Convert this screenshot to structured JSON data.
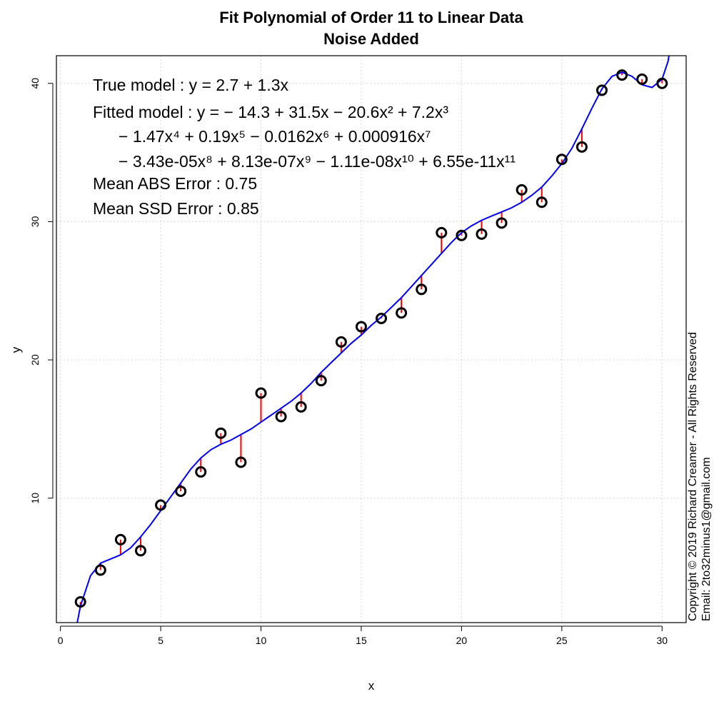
{
  "chart_data": {
    "type": "scatter",
    "title": "Fit Polynomial of Order 11 to Linear Data",
    "subtitle": "Noise Added",
    "xlabel": "x",
    "ylabel": "y",
    "xlim": [
      -0.2,
      31.2
    ],
    "ylim": [
      1.0,
      42.0
    ],
    "xticks": [
      0,
      5,
      10,
      15,
      20,
      25,
      30
    ],
    "yticks": [
      10,
      20,
      30,
      40
    ],
    "grid": true,
    "points": {
      "x": [
        1,
        2,
        3,
        4,
        5,
        6,
        7,
        8,
        9,
        10,
        11,
        12,
        13,
        14,
        15,
        16,
        17,
        18,
        19,
        20,
        21,
        22,
        23,
        24,
        25,
        26,
        27,
        28,
        29,
        30
      ],
      "y": [
        2.5,
        4.8,
        7.0,
        6.2,
        9.5,
        10.5,
        11.9,
        14.7,
        12.6,
        17.6,
        15.9,
        16.6,
        18.5,
        21.3,
        22.4,
        23.0,
        23.4,
        25.1,
        29.2,
        29.0,
        29.1,
        29.9,
        32.3,
        31.4,
        34.5,
        35.4,
        39.5,
        40.6,
        40.3,
        40.0
      ]
    },
    "fit_curve": {
      "color": "#0000ff",
      "x": [
        0.5,
        1,
        1.5,
        2,
        2.5,
        3,
        3.5,
        4,
        4.5,
        5,
        5.5,
        6,
        6.5,
        7,
        7.5,
        8,
        8.5,
        9,
        9.5,
        10,
        10.5,
        11,
        11.5,
        12,
        12.5,
        13,
        13.5,
        14,
        14.5,
        15,
        15.5,
        16,
        16.5,
        17,
        17.5,
        18,
        18.5,
        19,
        19.5,
        20,
        20.5,
        21,
        21.5,
        22,
        22.5,
        23,
        23.5,
        24,
        24.5,
        25,
        25.5,
        26,
        26.5,
        27,
        27.5,
        28,
        28.5,
        29,
        29.5,
        30,
        30.3,
        30.4
      ],
      "y": [
        -1.5,
        2.2,
        4.4,
        5.3,
        5.6,
        5.9,
        6.4,
        7.2,
        8.1,
        9.1,
        10.1,
        11.1,
        12.1,
        12.9,
        13.5,
        13.9,
        14.2,
        14.6,
        15.0,
        15.5,
        16.0,
        16.5,
        17.0,
        17.6,
        18.3,
        19.1,
        19.8,
        20.5,
        21.2,
        21.8,
        22.5,
        23.1,
        23.8,
        24.5,
        25.3,
        26.1,
        26.9,
        27.7,
        28.5,
        29.2,
        29.7,
        30.1,
        30.4,
        30.7,
        31.0,
        31.4,
        31.9,
        32.5,
        33.3,
        34.2,
        35.3,
        36.7,
        38.2,
        39.6,
        40.5,
        40.8,
        40.5,
        39.9,
        39.7,
        40.3,
        41.6,
        42.5
      ]
    },
    "residual_color": "#ff0000",
    "annotations": [
      "True model : y = 2.7 + 1.3x",
      "Fitted model : y = − 14.3 + 31.5x − 20.6x² + 7.2x³",
      "− 1.47x⁴ + 0.19x⁵ − 0.0162x⁶ + 0.000916x⁷",
      "− 3.43e-05x⁸ + 8.13e-07x⁹ − 1.11e-08x¹⁰ + 6.55e-11x¹¹",
      "Mean ABS Error : 0.75",
      "Mean SSD Error : 0.85"
    ],
    "copyright": [
      "Copyright © 2019 Richard Creamer - All Rights Reserved",
      "Email: 2to32minus1@gmail.com"
    ]
  }
}
